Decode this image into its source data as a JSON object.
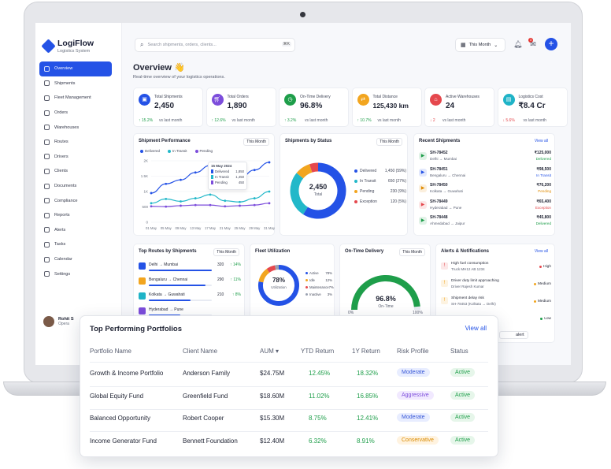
{
  "app": {
    "name": "LogiFlow",
    "subtitle": "Logistics System"
  },
  "sidebar": {
    "items": [
      {
        "label": "Overview",
        "active": true
      },
      {
        "label": "Shipments"
      },
      {
        "label": "Fleet Management"
      },
      {
        "label": "Orders"
      },
      {
        "label": "Warehouses"
      },
      {
        "label": "Routes"
      },
      {
        "label": "Drivers"
      },
      {
        "label": "Clients"
      },
      {
        "label": "Documents"
      },
      {
        "label": "Compliance"
      },
      {
        "label": "Reports"
      },
      {
        "label": "Alerts"
      },
      {
        "label": "Tasks"
      },
      {
        "label": "Calendar"
      },
      {
        "label": "Settings"
      }
    ],
    "user": {
      "name": "Rohit S",
      "role": "Opera"
    }
  },
  "topbar": {
    "search_placeholder": "Search shipments, orders, clients...",
    "kbd": "⌘K",
    "period": "This Month",
    "notif_count": "3"
  },
  "page": {
    "title": "Overview 👋",
    "subtitle": "Real-time overview of your logistics operations."
  },
  "kpis": [
    {
      "label": "Total Shipments",
      "value": "2,450",
      "delta": "↑ 15.2%",
      "note": "vs last month",
      "color": "#2452e6",
      "icon": "box-icon",
      "up": true
    },
    {
      "label": "Total Orders",
      "value": "1,890",
      "delta": "↑ 12.6%",
      "note": "vs last month",
      "color": "#7c4ddb",
      "icon": "cart-icon",
      "up": true
    },
    {
      "label": "On-Time Delivery",
      "value": "96.8%",
      "delta": "↑ 3.2%",
      "note": "vs last month",
      "color": "#1e9e4a",
      "icon": "clock-icon",
      "up": true
    },
    {
      "label": "Total Distance",
      "value": "125,430 km",
      "delta": "↑ 10.7%",
      "note": "vs last month",
      "color": "#f2a51f",
      "icon": "route-icon",
      "up": true
    },
    {
      "label": "Active Warehouses",
      "value": "24",
      "delta": "↓ 2",
      "note": "vs last month",
      "color": "#e5484d",
      "icon": "warehouse-icon",
      "up": false
    },
    {
      "label": "Logistics Cost",
      "value": "₹8.4 Cr",
      "delta": "↓ 5.6%",
      "note": "vs last month",
      "color": "#1fb3c7",
      "icon": "wallet-icon",
      "up": false
    }
  ],
  "performance": {
    "title": "Shipment Performance",
    "period": "This Month",
    "legend": [
      "Delivered",
      "In Transit",
      "Pending"
    ],
    "tooltip": {
      "date": "15 May 2024",
      "rows": [
        [
          "Delivered",
          "1,850"
        ],
        [
          "In Transit",
          "1,450"
        ],
        [
          "Pending",
          "450"
        ]
      ]
    }
  },
  "chart_data": {
    "type": "line",
    "title": "Shipment Performance",
    "categories": [
      "01 May",
      "05 May",
      "09 May",
      "13 May",
      "17 May",
      "21 May",
      "25 May",
      "29 May",
      "31 May"
    ],
    "ylim": [
      0,
      2000
    ],
    "yticks": [
      "0",
      "500",
      "1K",
      "1.5K",
      "2K"
    ],
    "series": [
      {
        "name": "Delivered",
        "color": "#2452e6",
        "values": [
          950,
          1250,
          1380,
          1620,
          1850,
          1520,
          1430,
          1700,
          1950
        ]
      },
      {
        "name": "In Transit",
        "color": "#22b8c9",
        "values": [
          620,
          760,
          680,
          780,
          900,
          700,
          660,
          780,
          1000
        ]
      },
      {
        "name": "Pending",
        "color": "#7c4ddb",
        "values": [
          520,
          510,
          540,
          560,
          560,
          520,
          540,
          560,
          620
        ]
      }
    ]
  },
  "status": {
    "title": "Shipments by Status",
    "period": "This Month",
    "total": "2,450",
    "total_label": "Total",
    "items": [
      {
        "label": "Delivered",
        "value": "1,450 (59%)",
        "color": "#2452e6",
        "pct": 59
      },
      {
        "label": "In Transit",
        "value": "650 (27%)",
        "color": "#22b8c9",
        "pct": 27
      },
      {
        "label": "Pending",
        "value": "230 (9%)",
        "color": "#f2a51f",
        "pct": 9
      },
      {
        "label": "Exception",
        "value": "120 (5%)",
        "color": "#e5484d",
        "pct": 5
      }
    ]
  },
  "recent": {
    "title": "Recent Shipments",
    "link": "View all",
    "items": [
      {
        "id": "SH-78452",
        "route": "Delhi → Mumbai",
        "amount": "₹125,000",
        "status": "Delivered",
        "color": "#1e9e4a"
      },
      {
        "id": "SH-78451",
        "route": "Bengaluru → Chennai",
        "amount": "₹98,500",
        "status": "In Transit",
        "color": "#2452e6"
      },
      {
        "id": "SH-78450",
        "route": "Kolkata → Guwahati",
        "amount": "₹76,200",
        "status": "Pending",
        "color": "#e08a00"
      },
      {
        "id": "SH-78449",
        "route": "Hyderabad → Pune",
        "amount": "₹65,400",
        "status": "Exception",
        "color": "#e5484d"
      },
      {
        "id": "SH-78448",
        "route": "Ahmedabad → Jaipur",
        "amount": "₹45,800",
        "status": "Delivered",
        "color": "#1e9e4a"
      }
    ]
  },
  "routes": {
    "title": "Top Routes by Shipments",
    "period": "This Month",
    "items": [
      {
        "route": "Delhi → Mumbai",
        "count": "320",
        "delta": "↑ 14%",
        "fill": 1.0
      },
      {
        "route": "Bengaluru → Chennai",
        "count": "290",
        "delta": "↑ 11%",
        "fill": 0.9
      },
      {
        "route": "Kolkata → Guwahati",
        "count": "210",
        "delta": "↑ 8%",
        "fill": 0.66
      },
      {
        "route": "Hyderabad → Pune",
        "count": "",
        "delta": "",
        "fill": 0.5
      }
    ]
  },
  "fleet": {
    "title": "Fleet Utilization",
    "value": "78%",
    "label": "Utilization",
    "items": [
      {
        "label": "Active",
        "value": "78%",
        "color": "#2452e6",
        "pct": 78
      },
      {
        "label": "Idle",
        "value": "12%",
        "color": "#f2a51f",
        "pct": 12
      },
      {
        "label": "Maintenance",
        "value": "7%",
        "color": "#e5484d",
        "pct": 7
      },
      {
        "label": "Inactive",
        "value": "3%",
        "color": "#9aa1b1",
        "pct": 3
      }
    ]
  },
  "ontime": {
    "title": "On-Time Delivery",
    "period": "This Month",
    "value": "96.8%",
    "label": "On-Time",
    "min": "0%",
    "max": "100%",
    "pct": 96.8
  },
  "alerts": {
    "title": "Alerts & Notifications",
    "link": "View all",
    "items": [
      {
        "title": "High fuel consumption",
        "sub": "Truck MH12 AB 1234",
        "level": "High",
        "color": "#e5484d"
      },
      {
        "title": "Driver duty limit approaching",
        "sub": "Driver Rajesh Kumar",
        "level": "Medium",
        "color": "#f2a51f"
      },
      {
        "title": "Shipment delay risk",
        "sub": "SH-78453 (Kolkata → Delhi)",
        "level": "Medium",
        "color": "#f2a51f"
      },
      {
        "title": "",
        "sub": "",
        "level": "Low",
        "color": "#1e9e4a"
      }
    ],
    "partial": "alert"
  },
  "portfolio": {
    "title": "Top Performing Portfolios",
    "link": "View all",
    "headers": [
      "Portfolio Name",
      "Client Name",
      "AUM ▾",
      "YTD Return",
      "1Y Return",
      "Risk Profile",
      "Status"
    ],
    "rows": [
      {
        "name": "Growth & Income Portfolio",
        "client": "Anderson Family",
        "aum": "$24.75M",
        "ytd": "12.45%",
        "oney": "18.32%",
        "risk": "Moderate",
        "status": "Active"
      },
      {
        "name": "Global Equity Fund",
        "client": "Greenfield Fund",
        "aum": "$18.60M",
        "ytd": "11.02%",
        "oney": "16.85%",
        "risk": "Aggressive",
        "status": "Active"
      },
      {
        "name": "Balanced Opportunity",
        "client": "Robert Cooper",
        "aum": "$15.30M",
        "ytd": "8.75%",
        "oney": "12.41%",
        "risk": "Moderate",
        "status": "Active"
      },
      {
        "name": "Income Generator Fund",
        "client": "Bennett Foundation",
        "aum": "$12.40M",
        "ytd": "6.32%",
        "oney": "8.91%",
        "risk": "Conservative",
        "status": "Active"
      }
    ],
    "risk_colors": {
      "Moderate": [
        "#e8edff",
        "#3656d6"
      ],
      "Aggressive": [
        "#f1e9ff",
        "#7c4ddb"
      ],
      "Conservative": [
        "#fff3e0",
        "#d98a00"
      ]
    }
  }
}
